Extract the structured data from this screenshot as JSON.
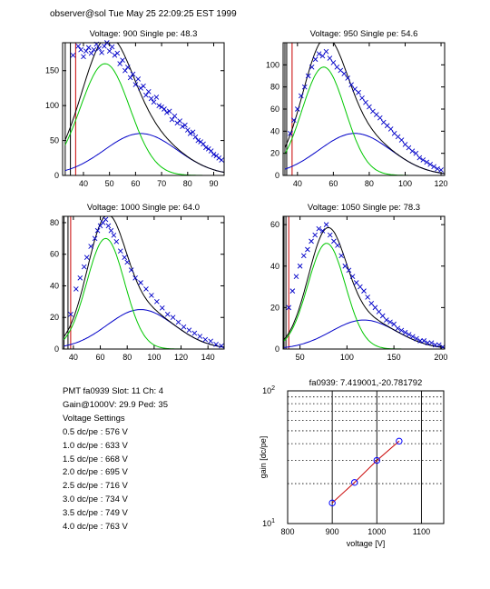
{
  "header": "observer@sol  Tue May 25 22:09:25 EST 1999",
  "info": {
    "pmt_line": "PMT fa0939 Slot: 11 Ch: 4",
    "gain_line": "Gain@1000V: 29.9 Ped: 35",
    "settings_title": "Voltage Settings",
    "settings": [
      "0.5 dc/pe : 576 V",
      "1.0 dc/pe : 633 V",
      "1.5 dc/pe : 668 V",
      "2.0 dc/pe : 695 V",
      "2.5 dc/pe : 716 V",
      "3.0 dc/pe : 734 V",
      "3.5 dc/pe : 749 V",
      "4.0 dc/pe : 763 V"
    ]
  },
  "colors": {
    "data": "#0000c8",
    "total_fit": "#000000",
    "single_pe": "#00c800",
    "double_pe": "#0000c8",
    "pedestal": "#c80000",
    "gain_line": "#c80000",
    "gain_marker": "#0000ff"
  },
  "chart_data": [
    {
      "type": "scatter",
      "title": "Voltage: 900 Single pe: 48.3",
      "xlim": [
        32,
        94
      ],
      "ylim": [
        0,
        190
      ],
      "xticks": [
        40,
        50,
        60,
        70,
        80,
        90
      ],
      "yticks": [
        0,
        50,
        100,
        150
      ],
      "pedestal_x": [
        33,
        35,
        37
      ],
      "fit": {
        "amp1": 160,
        "mu1": 48.3,
        "sig1": 9.5,
        "amp2": 60,
        "mu2": 62,
        "sig2": 14,
        "offset": 33
      },
      "series": [
        {
          "values_x": [
            36,
            38,
            39,
            40,
            41,
            42,
            43,
            44,
            45,
            46,
            47,
            48,
            49,
            50,
            51,
            52,
            53,
            54,
            55,
            56,
            57,
            58,
            59,
            60,
            61,
            62,
            63,
            64,
            65,
            66,
            67,
            68,
            69,
            70,
            71,
            72,
            73,
            74,
            75,
            76,
            77,
            78,
            79,
            80,
            81,
            82,
            83,
            84,
            85,
            86,
            87,
            88,
            89,
            90,
            91,
            92,
            93
          ],
          "values_y": [
            172,
            185,
            180,
            170,
            178,
            183,
            175,
            180,
            188,
            182,
            176,
            185,
            190,
            178,
            184,
            172,
            175,
            160,
            165,
            150,
            155,
            140,
            145,
            130,
            138,
            125,
            128,
            115,
            120,
            110,
            105,
            112,
            100,
            98,
            95,
            90,
            92,
            80,
            85,
            75,
            78,
            70,
            72,
            65,
            60,
            62,
            55,
            50,
            48,
            45,
            40,
            38,
            35,
            30,
            28,
            25,
            22
          ]
        }
      ]
    },
    {
      "type": "scatter",
      "title": "Voltage: 950 Single pe: 54.6",
      "xlim": [
        32,
        122
      ],
      "ylim": [
        0,
        120
      ],
      "xticks": [
        40,
        60,
        80,
        100,
        120
      ],
      "yticks": [
        0,
        20,
        40,
        60,
        80,
        100
      ],
      "pedestal_x": [
        33,
        34,
        37
      ],
      "fit": {
        "amp1": 98,
        "mu1": 54.6,
        "sig1": 12,
        "amp2": 38,
        "mu2": 72,
        "sig2": 20,
        "offset": 33
      },
      "series": [
        {
          "values_x": [
            36,
            38,
            40,
            42,
            44,
            46,
            48,
            50,
            52,
            54,
            56,
            58,
            60,
            62,
            64,
            66,
            68,
            70,
            72,
            74,
            76,
            78,
            80,
            82,
            84,
            86,
            88,
            90,
            92,
            94,
            96,
            98,
            100,
            102,
            104,
            106,
            108,
            110,
            112,
            114,
            116,
            118,
            120
          ],
          "values_y": [
            38,
            50,
            60,
            72,
            80,
            90,
            98,
            105,
            110,
            108,
            112,
            106,
            102,
            98,
            95,
            92,
            88,
            82,
            78,
            75,
            70,
            66,
            62,
            58,
            55,
            52,
            48,
            45,
            42,
            38,
            35,
            32,
            28,
            25,
            22,
            20,
            16,
            14,
            12,
            10,
            8,
            6,
            5
          ]
        }
      ]
    },
    {
      "type": "scatter",
      "title": "Voltage: 1000 Single pe: 64.0",
      "xlim": [
        32,
        152
      ],
      "ylim": [
        0,
        84
      ],
      "xticks": [
        40,
        60,
        80,
        100,
        120,
        140
      ],
      "yticks": [
        0,
        20,
        40,
        60,
        80
      ],
      "pedestal_x": [
        33,
        36,
        38
      ],
      "fit": {
        "amp1": 70,
        "mu1": 64.0,
        "sig1": 14,
        "amp2": 25,
        "mu2": 90,
        "sig2": 25,
        "offset": 33
      },
      "series": [
        {
          "values_x": [
            38,
            42,
            45,
            48,
            50,
            53,
            56,
            58,
            60,
            62,
            64,
            66,
            68,
            70,
            72,
            75,
            78,
            80,
            83,
            86,
            90,
            94,
            98,
            102,
            106,
            110,
            114,
            118,
            122,
            126,
            130,
            134,
            138,
            142,
            146,
            150
          ],
          "values_y": [
            22,
            38,
            45,
            52,
            58,
            65,
            70,
            75,
            78,
            80,
            82,
            78,
            75,
            72,
            68,
            62,
            58,
            55,
            50,
            45,
            42,
            38,
            34,
            30,
            26,
            22,
            20,
            17,
            14,
            12,
            10,
            8,
            6,
            5,
            3,
            2
          ]
        }
      ]
    },
    {
      "type": "scatter",
      "title": "Voltage: 1050 Single pe: 78.3",
      "xlim": [
        32,
        204
      ],
      "ylim": [
        0,
        64
      ],
      "xticks": [
        50,
        100,
        150,
        200
      ],
      "yticks": [
        0,
        20,
        40,
        60
      ],
      "pedestal_x": [
        33,
        35,
        38
      ],
      "fit": {
        "amp1": 51,
        "mu1": 78.3,
        "sig1": 20,
        "amp2": 14,
        "mu2": 118,
        "sig2": 35,
        "offset": 33
      },
      "series": [
        {
          "values_x": [
            38,
            42,
            46,
            50,
            54,
            58,
            62,
            66,
            70,
            74,
            78,
            82,
            86,
            90,
            94,
            98,
            102,
            106,
            110,
            114,
            118,
            122,
            126,
            130,
            134,
            138,
            142,
            146,
            150,
            154,
            158,
            162,
            166,
            170,
            174,
            178,
            182,
            186,
            190,
            194,
            198,
            202
          ],
          "values_y": [
            20,
            28,
            35,
            40,
            45,
            48,
            52,
            55,
            58,
            57,
            60,
            55,
            52,
            50,
            45,
            40,
            38,
            35,
            32,
            30,
            28,
            25,
            22,
            20,
            18,
            16,
            14,
            13,
            12,
            10,
            9,
            8,
            7,
            6,
            5,
            4,
            4,
            3,
            3,
            2,
            2,
            1
          ]
        }
      ]
    },
    {
      "type": "line",
      "title": "fa0939: 7.419001,-20.781792",
      "xlabel": "voltage [V]",
      "ylabel": "gain [dc/pe]",
      "log_y": true,
      "xlim": [
        800,
        1150
      ],
      "ylim": [
        10,
        100
      ],
      "xticks": [
        800,
        900,
        1000,
        1100
      ],
      "yticks": [
        {
          "value": 10,
          "base": "10",
          "exp": "1"
        },
        {
          "value": 100,
          "base": "10",
          "exp": "2"
        }
      ],
      "yminor": [
        20,
        30,
        40,
        50,
        60,
        70,
        80,
        90
      ],
      "x": [
        900,
        950,
        1000,
        1050
      ],
      "values": [
        14.3,
        20.4,
        29.9,
        41.8
      ]
    }
  ]
}
